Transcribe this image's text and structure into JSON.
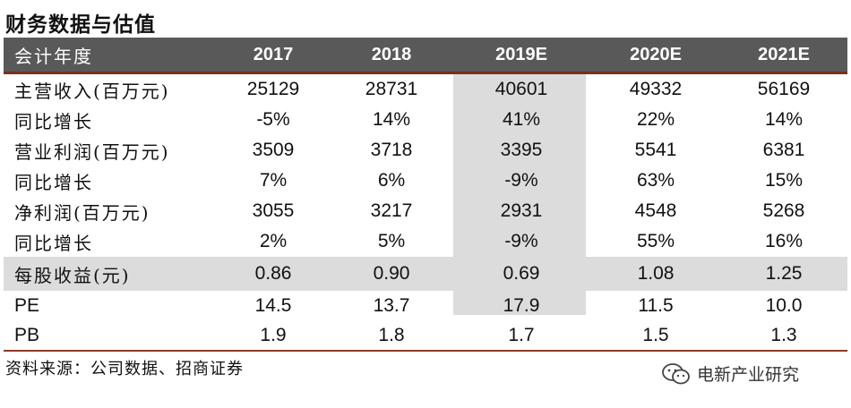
{
  "title": "财务数据与估值",
  "header": {
    "label": "会计年度",
    "years": [
      "2017",
      "2018",
      "2019E",
      "2020E",
      "2021E"
    ]
  },
  "rows": [
    {
      "label": "主营收入(百万元)",
      "values": [
        "25129",
        "28731",
        "40601",
        "49332",
        "56169"
      ]
    },
    {
      "label": "同比增长",
      "values": [
        "-5%",
        "14%",
        "41%",
        "22%",
        "14%"
      ]
    },
    {
      "label": "营业利润(百万元)",
      "values": [
        "3509",
        "3718",
        "3395",
        "5541",
        "6381"
      ]
    },
    {
      "label": "同比增长",
      "values": [
        "7%",
        "6%",
        "-9%",
        "63%",
        "15%"
      ]
    },
    {
      "label": "净利润(百万元)",
      "values": [
        "3055",
        "3217",
        "2931",
        "4548",
        "5268"
      ]
    },
    {
      "label": "同比增长",
      "values": [
        "2%",
        "5%",
        "-9%",
        "55%",
        "16%"
      ]
    },
    {
      "label": "每股收益(元)",
      "values": [
        "0.86",
        "0.90",
        "0.69",
        "1.08",
        "1.25"
      ]
    },
    {
      "label": "PE",
      "values": [
        "14.5",
        "13.7",
        "17.9",
        "11.5",
        "10.0"
      ]
    },
    {
      "label": "PB",
      "values": [
        "1.9",
        "1.8",
        "1.7",
        "1.5",
        "1.3"
      ]
    }
  ],
  "source": "资料来源：公司数据、招商证券",
  "brand": {
    "icon": "wechat-icon",
    "name": "电新产业研究"
  },
  "colors": {
    "header_bg": "#595959",
    "accent_line": "#7b2f1a",
    "highlight": "#dcdcdc"
  }
}
